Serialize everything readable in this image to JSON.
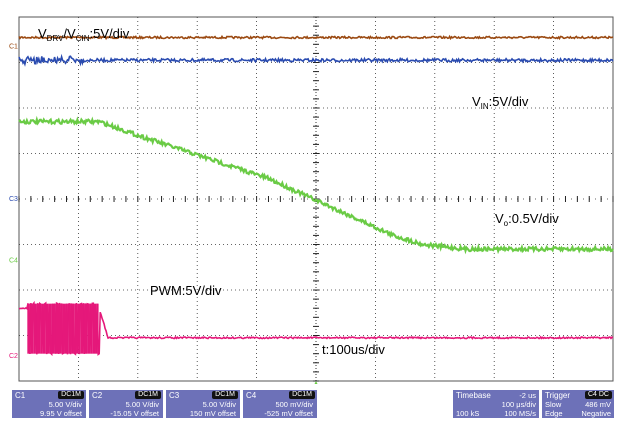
{
  "chart_data": {
    "type": "line",
    "title": "",
    "xlabel": "",
    "ylabel": "",
    "grid": true,
    "divisions": {
      "x": 10,
      "y": 8
    },
    "annotations": {
      "vdrv": "V",
      "vdrv_sub": "DRV",
      "slash": "/V",
      "vcin_sub": "CIN",
      "vdrv_scale": ":5V/div",
      "vin": "V",
      "vin_sub": "IN",
      "vin_scale": ":5V/div",
      "vo": "V",
      "vo_sub": "o",
      "vo_scale": ":0.5V/div",
      "pwm": "PWM:5V/div",
      "time": "t:100us/div"
    },
    "series": [
      {
        "key": "vdrv",
        "color": "#9b4a12",
        "x": [
          0,
          10
        ],
        "y": [
          3.55,
          3.55
        ]
      },
      {
        "key": "vin",
        "color": "#2a4bb0",
        "x": [
          0,
          10
        ],
        "y": [
          3.05,
          3.05
        ]
      },
      {
        "key": "vo",
        "color": "#6acb45",
        "x": [
          0,
          1.35,
          2.0,
          4.2,
          6.3,
          6.8,
          7.5,
          10
        ],
        "y": [
          1.7,
          1.7,
          1.4,
          0.45,
          -0.8,
          -1.0,
          -1.1,
          -1.1
        ]
      },
      {
        "key": "pwm",
        "color": "#e5187a",
        "x": [
          0,
          1.35,
          1.5,
          10
        ],
        "y": [
          -2.4,
          -2.4,
          -3.05,
          -3.05
        ],
        "burst": {
          "x0": 0.15,
          "x1": 1.35,
          "low": -3.4,
          "high": -2.3,
          "pulses": 30
        }
      }
    ],
    "channel_markers": [
      "C1",
      "C3",
      "C4",
      "C2"
    ]
  },
  "status_bar": {
    "ch1": {
      "name": "C1",
      "coupling": "DC1M",
      "line1": "5.00 V/div",
      "line2": "9.95 V offset",
      "color": "#9b4a12"
    },
    "ch2": {
      "name": "C2",
      "coupling": "DC1M",
      "line1": "5.00 V/div",
      "line2": "-15.05 V offset",
      "color": "#e5187a"
    },
    "ch3": {
      "name": "C3",
      "coupling": "DC1M",
      "line1": "5.00 V/div",
      "line2": "150 mV offset",
      "color": "#2a4bb0"
    },
    "ch4": {
      "name": "C4",
      "coupling": "DC1M",
      "line1": "500 mV/div",
      "line2": "-525 mV offset",
      "color": "#6acb45"
    },
    "timebase": {
      "name": "Timebase",
      "value": "-2 us",
      "row1_left": "",
      "row1_right": "100 μs/div",
      "row2_left": "100 kS",
      "row2_right": "100 MS/s"
    },
    "trigger": {
      "name": "Trigger",
      "badge": "C4 DC",
      "row1_left": "Slow",
      "row1_right": "486 mV",
      "row2_left": "Edge",
      "row2_right": "Negative"
    }
  }
}
